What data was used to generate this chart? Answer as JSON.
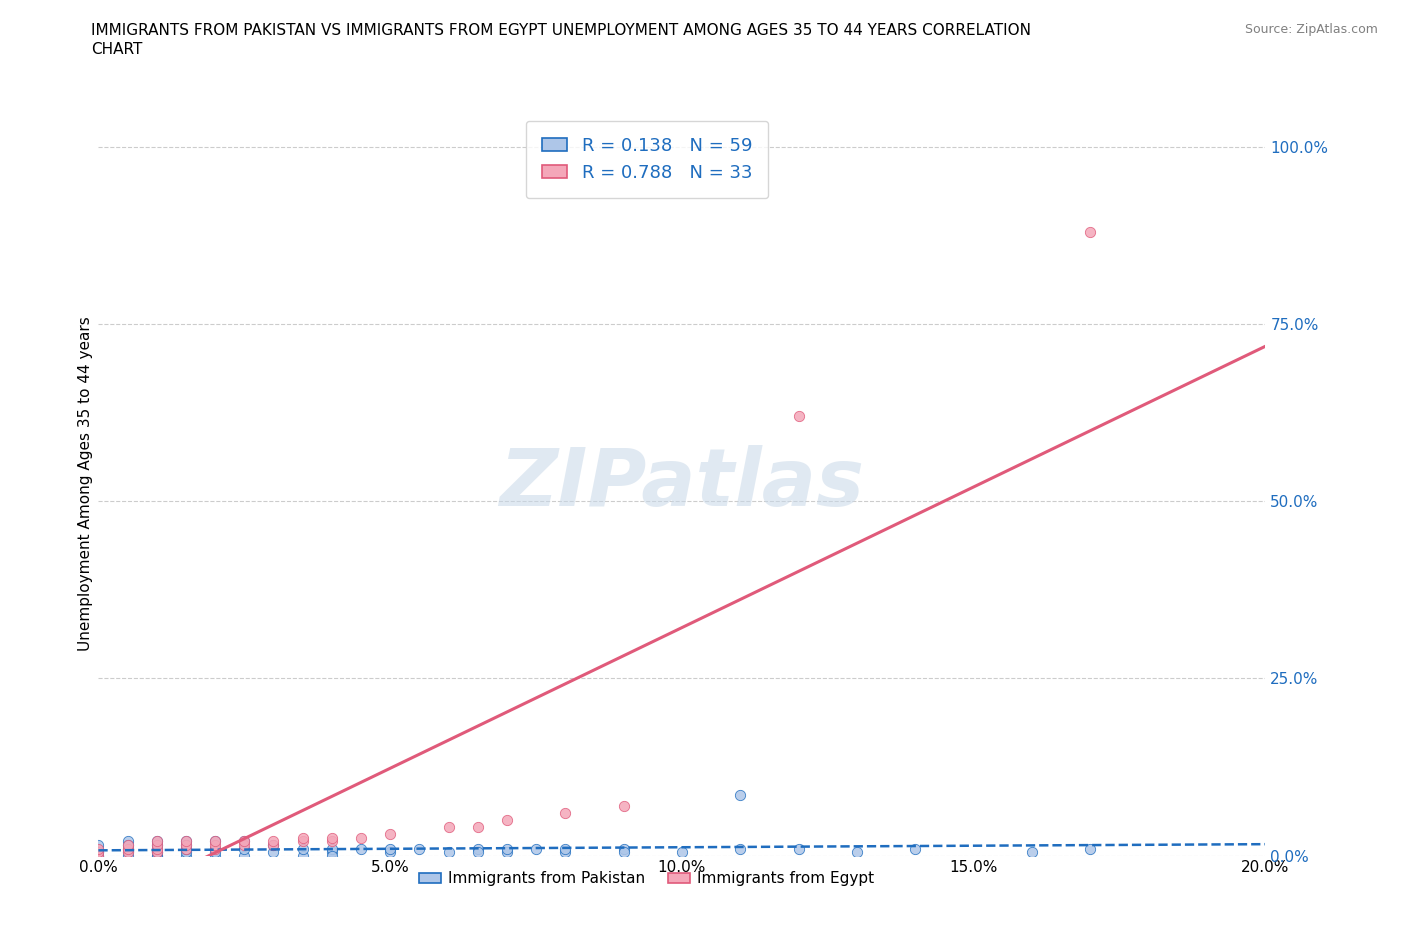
{
  "title_line1": "IMMIGRANTS FROM PAKISTAN VS IMMIGRANTS FROM EGYPT UNEMPLOYMENT AMONG AGES 35 TO 44 YEARS CORRELATION",
  "title_line2": "CHART",
  "source_text": "Source: ZipAtlas.com",
  "ylabel": "Unemployment Among Ages 35 to 44 years",
  "xlim": [
    0.0,
    0.2
  ],
  "ylim": [
    0.0,
    1.05
  ],
  "yticks": [
    0.0,
    0.25,
    0.5,
    0.75,
    1.0
  ],
  "ytick_labels": [
    "0.0%",
    "25.0%",
    "50.0%",
    "75.0%",
    "100.0%"
  ],
  "xticks": [
    0.0,
    0.05,
    0.1,
    0.15,
    0.2
  ],
  "xtick_labels": [
    "0.0%",
    "5.0%",
    "10.0%",
    "15.0%",
    "20.0%"
  ],
  "pakistan_color": "#aec6e8",
  "egypt_color": "#f4a7b9",
  "pakistan_line_color": "#1f6dbf",
  "egypt_line_color": "#e05a7a",
  "pakistan_R": 0.138,
  "pakistan_N": 59,
  "egypt_R": 0.788,
  "egypt_N": 33,
  "legend_label_pakistan": "Immigrants from Pakistan",
  "legend_label_egypt": "Immigrants from Egypt",
  "pakistan_scatter_x": [
    0.0,
    0.0,
    0.0,
    0.0,
    0.0,
    0.0,
    0.005,
    0.005,
    0.005,
    0.005,
    0.005,
    0.01,
    0.01,
    0.01,
    0.01,
    0.01,
    0.01,
    0.01,
    0.015,
    0.015,
    0.015,
    0.015,
    0.015,
    0.02,
    0.02,
    0.02,
    0.02,
    0.025,
    0.025,
    0.025,
    0.03,
    0.03,
    0.035,
    0.035,
    0.04,
    0.04,
    0.04,
    0.045,
    0.05,
    0.05,
    0.055,
    0.06,
    0.065,
    0.065,
    0.07,
    0.07,
    0.075,
    0.08,
    0.08,
    0.09,
    0.09,
    0.1,
    0.11,
    0.11,
    0.12,
    0.13,
    0.14,
    0.16,
    0.17
  ],
  "pakistan_scatter_y": [
    0.005,
    0.01,
    0.0,
    0.015,
    0.005,
    0.0,
    0.01,
    0.02,
    0.005,
    0.0,
    0.015,
    0.0,
    0.005,
    0.01,
    0.015,
    0.02,
    0.0,
    0.005,
    0.0,
    0.005,
    0.01,
    0.02,
    0.015,
    0.0,
    0.01,
    0.02,
    0.005,
    0.0,
    0.01,
    0.02,
    0.005,
    0.015,
    0.0,
    0.01,
    0.005,
    0.01,
    0.0,
    0.01,
    0.005,
    0.01,
    0.01,
    0.005,
    0.01,
    0.005,
    0.005,
    0.01,
    0.01,
    0.005,
    0.01,
    0.01,
    0.005,
    0.005,
    0.085,
    0.01,
    0.01,
    0.005,
    0.01,
    0.005,
    0.01
  ],
  "egypt_scatter_x": [
    0.0,
    0.0,
    0.0,
    0.005,
    0.005,
    0.005,
    0.01,
    0.01,
    0.01,
    0.01,
    0.015,
    0.015,
    0.015,
    0.02,
    0.02,
    0.02,
    0.025,
    0.025,
    0.03,
    0.03,
    0.035,
    0.035,
    0.04,
    0.04,
    0.045,
    0.05,
    0.06,
    0.065,
    0.07,
    0.08,
    0.09,
    0.12,
    0.17
  ],
  "egypt_scatter_y": [
    0.0,
    0.005,
    0.01,
    0.005,
    0.01,
    0.015,
    0.005,
    0.01,
    0.015,
    0.02,
    0.01,
    0.015,
    0.02,
    0.01,
    0.015,
    0.02,
    0.015,
    0.02,
    0.015,
    0.02,
    0.02,
    0.025,
    0.02,
    0.025,
    0.025,
    0.03,
    0.04,
    0.04,
    0.05,
    0.06,
    0.07,
    0.62,
    0.88
  ],
  "watermark": "ZIPatlas",
  "background_color": "#ffffff",
  "grid_color": "#cccccc",
  "title_fontsize": 11,
  "axis_label_fontsize": 11,
  "tick_fontsize": 11,
  "legend_fontsize": 13
}
